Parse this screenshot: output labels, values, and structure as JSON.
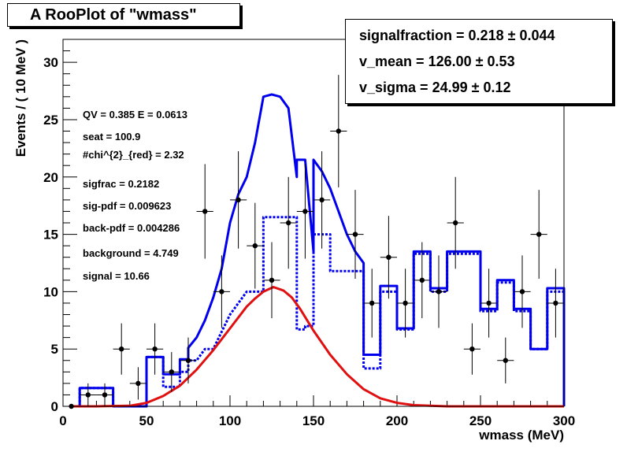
{
  "title": "A RooPlot of \"wmass\"",
  "stats_box": {
    "lines": [
      {
        "label": "signalfraction = ",
        "value": "0.218",
        "pm": "±",
        "error": "0.044"
      },
      {
        "label": "v_mean = ",
        "value": "126.00",
        "pm": "±",
        "error": "0.53"
      },
      {
        "label": "v_sigma = ",
        "value": "24.99",
        "pm": "±",
        "error": "0.12"
      }
    ]
  },
  "annotations": [
    "QV = 0.385 E = 0.0613",
    "seat = 100.9",
    "#chi^{2}_{red} = 2.32",
    "sigfrac = 0.2182",
    "sig-pdf = 0.009623",
    "back-pdf = 0.004286",
    "background = 4.749",
    "signal = 10.66"
  ],
  "colors": {
    "frame": "#000000",
    "total_pdf": "#0000ee",
    "signal_pdf": "#e01010",
    "data": "#000000"
  },
  "chart_data": {
    "type": "line",
    "title": "A RooPlot of \"wmass\"",
    "xlabel": "wmass (MeV)",
    "ylabel": "Events / ( 10 MeV )",
    "xlim": [
      0,
      300
    ],
    "ylim": [
      0,
      32
    ],
    "x_ticks": [
      0,
      50,
      100,
      150,
      200,
      250,
      300
    ],
    "y_ticks": [
      0,
      5,
      10,
      15,
      20,
      25,
      30
    ],
    "grid": false,
    "data_points": {
      "x": [
        5,
        15,
        25,
        35,
        45,
        55,
        65,
        75,
        85,
        95,
        105,
        115,
        125,
        135,
        145,
        155,
        165,
        175,
        185,
        195,
        205,
        215,
        225,
        235,
        245,
        255,
        265,
        275,
        285,
        295
      ],
      "y": [
        0,
        1,
        1,
        5,
        2,
        5,
        3,
        4,
        17,
        10,
        18,
        14,
        11,
        16,
        17,
        18,
        24,
        15,
        9,
        13,
        9,
        11,
        10,
        16,
        5,
        9,
        4,
        10,
        15,
        9
      ]
    },
    "series": [
      {
        "name": "total pdf",
        "style": "solid",
        "x": [
          10,
          10,
          30,
          30,
          50,
          50,
          60,
          60,
          70,
          70,
          75,
          75,
          80,
          85,
          90,
          95,
          100,
          100,
          105,
          110,
          115,
          120,
          125,
          130,
          135,
          140,
          140,
          145,
          150,
          150,
          155,
          160,
          165,
          170,
          175,
          180,
          180,
          190,
          190,
          200,
          200,
          210,
          210,
          220,
          220,
          230,
          230,
          250,
          250,
          260,
          260,
          270,
          270,
          280,
          280,
          290,
          290,
          300,
          300
        ],
        "y": [
          0,
          1.6,
          1.6,
          0,
          0,
          4.3,
          4.3,
          2.8,
          2.8,
          4.1,
          4.1,
          5.1,
          6.0,
          7.5,
          9.5,
          12.0,
          16.0,
          16.0,
          18.5,
          20.0,
          23.0,
          27.0,
          27.2,
          27.0,
          26.0,
          20.0,
          21.5,
          21.5,
          13.5,
          21.5,
          20.5,
          19.0,
          17.0,
          15.0,
          13.5,
          12.5,
          4.5,
          4.5,
          10.5,
          10.5,
          6.8,
          6.8,
          13.5,
          13.5,
          10.3,
          10.3,
          13.5,
          13.5,
          8.5,
          8.5,
          11.0,
          11.0,
          8.5,
          8.5,
          5.0,
          5.0,
          10.3,
          10.3,
          0
        ]
      },
      {
        "name": "background component",
        "style": "dashed",
        "x": [
          10,
          10,
          30,
          30,
          50,
          50,
          60,
          60,
          70,
          70,
          75,
          75,
          80,
          85,
          90,
          100,
          100,
          110,
          110,
          120,
          120,
          140,
          140,
          145,
          145,
          150,
          150,
          160,
          160,
          180,
          180,
          190,
          190,
          200,
          200,
          210,
          210,
          220,
          220,
          230,
          230,
          250,
          250,
          260,
          260,
          270,
          270,
          280,
          280,
          290,
          290,
          300
        ],
        "y": [
          0,
          1.6,
          1.6,
          0,
          0,
          4.3,
          4.3,
          1.7,
          1.7,
          3.0,
          3.0,
          4.0,
          4.0,
          5.0,
          5.0,
          8.0,
          8.0,
          10.0,
          10.0,
          10.0,
          16.5,
          16.5,
          6.7,
          6.7,
          7.0,
          7.0,
          15.0,
          15.0,
          11.8,
          11.8,
          3.3,
          3.3,
          10.0,
          10.0,
          6.7,
          6.7,
          13.3,
          13.3,
          10.0,
          10.0,
          13.3,
          13.3,
          8.3,
          8.3,
          10.8,
          10.8,
          8.3,
          8.3,
          5.0,
          5.0,
          10.0,
          10.0
        ]
      },
      {
        "name": "signal component",
        "style": "solid",
        "x": [
          5,
          20,
          40,
          50,
          60,
          70,
          80,
          90,
          100,
          110,
          115,
          120,
          126,
          132,
          137,
          142,
          150,
          160,
          170,
          180,
          190,
          200,
          210,
          230,
          250,
          300
        ],
        "y": [
          0,
          0,
          0.05,
          0.3,
          0.9,
          1.8,
          3.2,
          4.9,
          6.8,
          8.7,
          9.4,
          10.0,
          10.4,
          10.1,
          9.5,
          8.5,
          6.6,
          4.5,
          2.8,
          1.5,
          0.7,
          0.3,
          0.1,
          0,
          0,
          0
        ]
      }
    ]
  }
}
